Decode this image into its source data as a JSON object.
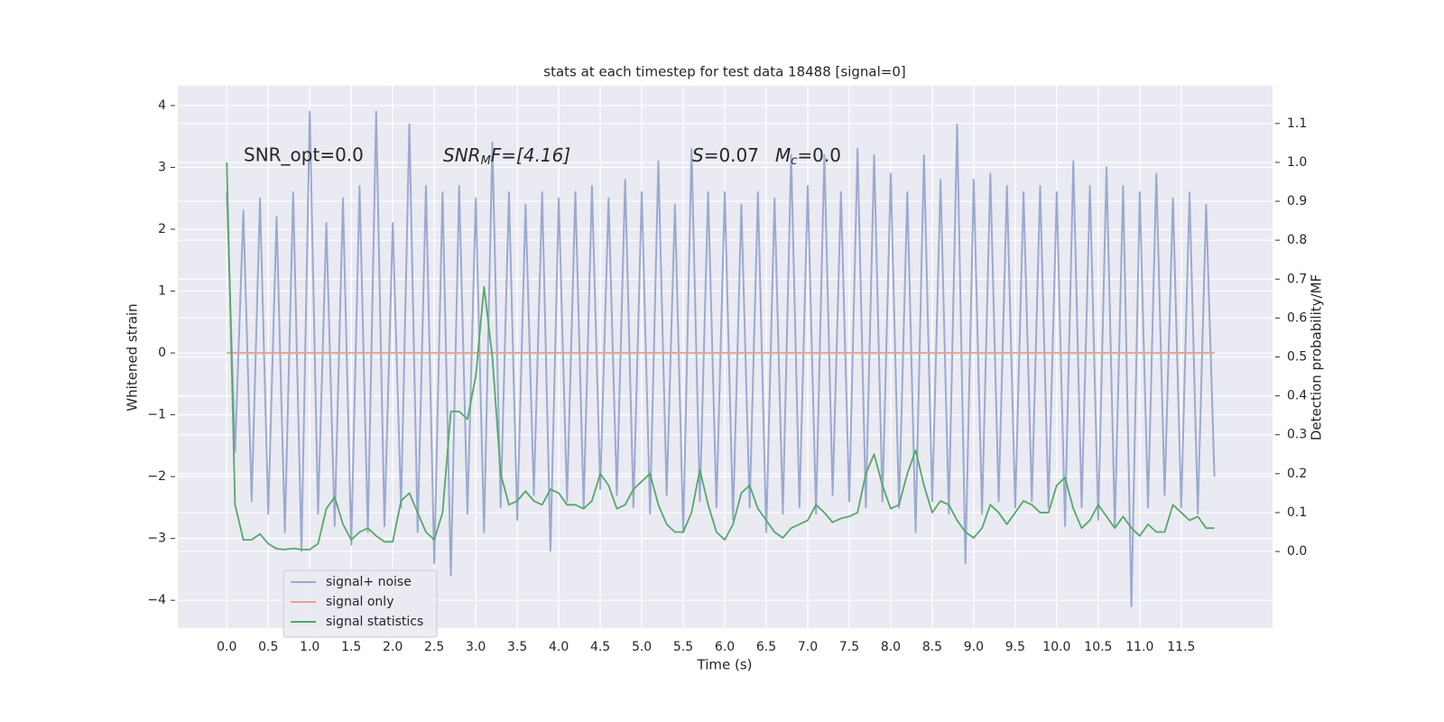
{
  "chart_data": {
    "type": "line",
    "title": "stats at each timestep for test data 18488 [signal=0]",
    "x_label": "Time (s)",
    "y_label": "Whitened strain",
    "y2_label": "Detection probability/MF",
    "annotations": [
      {
        "text": "SNR_opt=0.0"
      },
      {
        "base": "SNR",
        "sub": "M",
        "rest": "F=[4.16]"
      },
      {
        "base": "S",
        "rest": "=0.07"
      },
      {
        "base": "M",
        "sub": "c",
        "rest": "=0.0"
      }
    ],
    "x": [
      0.0,
      0.1,
      0.2,
      0.3,
      0.4,
      0.5,
      0.6,
      0.7,
      0.8,
      0.9,
      1.0,
      1.1,
      1.2,
      1.3,
      1.4,
      1.5,
      1.6,
      1.7,
      1.8,
      1.9,
      2.0,
      2.1,
      2.2,
      2.3,
      2.4,
      2.5,
      2.6,
      2.7,
      2.8,
      2.9,
      3.0,
      3.1,
      3.2,
      3.3,
      3.4,
      3.5,
      3.6,
      3.7,
      3.8,
      3.9,
      4.0,
      4.1,
      4.2,
      4.3,
      4.4,
      4.5,
      4.6,
      4.7,
      4.8,
      4.9,
      5.0,
      5.1,
      5.2,
      5.3,
      5.4,
      5.5,
      5.6,
      5.7,
      5.8,
      5.9,
      6.0,
      6.1,
      6.2,
      6.3,
      6.4,
      6.5,
      6.6,
      6.7,
      6.8,
      6.9,
      7.0,
      7.1,
      7.2,
      7.3,
      7.4,
      7.5,
      7.6,
      7.7,
      7.8,
      7.9,
      8.0,
      8.1,
      8.2,
      8.3,
      8.4,
      8.5,
      8.6,
      8.7,
      8.8,
      8.9,
      9.0,
      9.1,
      9.2,
      9.3,
      9.4,
      9.5,
      9.6,
      9.7,
      9.8,
      9.9,
      10.0,
      10.1,
      10.2,
      10.3,
      10.4,
      10.5,
      10.6,
      10.7,
      10.8,
      10.9,
      11.0,
      11.1,
      11.2,
      11.3,
      11.4,
      11.5,
      11.6,
      11.7,
      11.8,
      11.9
    ],
    "series": [
      {
        "name": "signal+ noise",
        "color": "#9aaad0",
        "values": [
          2.6,
          -1.6,
          2.3,
          -2.4,
          2.5,
          -2.6,
          2.2,
          -2.9,
          2.6,
          -3.2,
          3.9,
          -2.6,
          2.1,
          -2.8,
          2.5,
          -3.1,
          2.7,
          -2.9,
          3.9,
          -2.8,
          2.1,
          -2.5,
          3.7,
          -2.9,
          2.7,
          -3.4,
          2.6,
          -3.6,
          2.7,
          -2.6,
          2.5,
          -2.9,
          3.4,
          -2.5,
          2.6,
          -2.7,
          2.4,
          -2.3,
          2.6,
          -3.2,
          2.5,
          -2.4,
          2.6,
          -2.5,
          2.7,
          -2.2,
          2.5,
          -2.3,
          2.8,
          -2.5,
          2.6,
          -2.6,
          3.1,
          -2.3,
          2.4,
          -2.9,
          3.3,
          -2.4,
          2.6,
          -2.5,
          2.6,
          -2.7,
          2.4,
          -2.5,
          2.6,
          -2.9,
          2.5,
          -2.6,
          3.2,
          -2.5,
          2.7,
          -2.6,
          3.2,
          -2.3,
          2.6,
          -2.4,
          3.3,
          -2.5,
          3.2,
          -2.4,
          2.9,
          -2.5,
          2.6,
          -2.9,
          3.2,
          -2.4,
          2.8,
          -2.6,
          3.7,
          -3.4,
          2.8,
          -2.6,
          2.9,
          -2.4,
          2.7,
          -2.5,
          2.6,
          -2.4,
          2.7,
          -2.5,
          2.6,
          -2.8,
          3.1,
          -2.5,
          2.7,
          -2.7,
          3.0,
          -2.8,
          2.7,
          -4.1,
          2.6,
          -2.5,
          2.9,
          -2.3,
          2.5,
          -2.5,
          2.6,
          -2.6,
          2.4,
          -2.0
        ]
      },
      {
        "name": "signal only",
        "color": "#e4a68c",
        "x": [
          0.0,
          11.9
        ],
        "values": [
          0,
          0
        ]
      },
      {
        "name": "signal statistics",
        "color": "#55a868",
        "axis": "y2",
        "values": [
          1.0,
          0.12,
          0.03,
          0.03,
          0.045,
          0.02,
          0.007,
          0.005,
          0.008,
          0.005,
          0.005,
          0.02,
          0.11,
          0.14,
          0.07,
          0.03,
          0.05,
          0.06,
          0.04,
          0.025,
          0.025,
          0.13,
          0.15,
          0.1,
          0.05,
          0.03,
          0.1,
          0.36,
          0.36,
          0.34,
          0.45,
          0.68,
          0.5,
          0.2,
          0.12,
          0.13,
          0.155,
          0.13,
          0.12,
          0.16,
          0.15,
          0.12,
          0.12,
          0.11,
          0.13,
          0.2,
          0.17,
          0.11,
          0.12,
          0.16,
          0.18,
          0.2,
          0.12,
          0.07,
          0.05,
          0.05,
          0.1,
          0.21,
          0.12,
          0.05,
          0.03,
          0.07,
          0.15,
          0.17,
          0.11,
          0.08,
          0.05,
          0.035,
          0.06,
          0.07,
          0.08,
          0.12,
          0.1,
          0.075,
          0.085,
          0.09,
          0.1,
          0.2,
          0.25,
          0.17,
          0.11,
          0.12,
          0.2,
          0.26,
          0.17,
          0.1,
          0.13,
          0.12,
          0.08,
          0.05,
          0.035,
          0.06,
          0.12,
          0.1,
          0.07,
          0.1,
          0.13,
          0.12,
          0.1,
          0.1,
          0.17,
          0.19,
          0.11,
          0.06,
          0.08,
          0.12,
          0.09,
          0.06,
          0.09,
          0.06,
          0.04,
          0.07,
          0.05,
          0.05,
          0.12,
          0.1,
          0.08,
          0.09,
          0.06,
          0.06
        ]
      }
    ],
    "xlim": [
      -0.59,
      12.6
    ],
    "ylim": [
      -4.45,
      4.32
    ],
    "y2lim": [
      -0.197,
      1.197
    ],
    "xticks": [
      {
        "value": 0,
        "label": "0.0"
      },
      0.5,
      {
        "value": 1,
        "label": "1.0"
      },
      1.5,
      {
        "value": 2,
        "label": "2.0"
      },
      2.5,
      {
        "value": 3,
        "label": "3.0"
      },
      3.5,
      {
        "value": 4,
        "label": "4.0"
      },
      4.5,
      {
        "value": 5,
        "label": "5.0"
      },
      5.5,
      {
        "value": 6,
        "label": "6.0"
      },
      6.5,
      {
        "value": 7,
        "label": "7.0"
      },
      7.5,
      {
        "value": 8,
        "label": "8.0"
      },
      8.5,
      {
        "value": 9,
        "label": "9.0"
      },
      9.5,
      {
        "value": 10,
        "label": "10.0"
      },
      10.5,
      {
        "value": 11,
        "label": "11.0"
      },
      11.5
    ],
    "yticks": [
      {
        "value": -4,
        "label": "−4"
      },
      {
        "value": -3,
        "label": "−3"
      },
      {
        "value": -2,
        "label": "−2"
      },
      {
        "value": -1,
        "label": "−1"
      },
      0,
      1,
      2,
      3,
      4
    ],
    "y2ticks": [
      {
        "value": 0,
        "label": "0.0"
      },
      0.1,
      0.2,
      0.3,
      0.4,
      0.5,
      0.6,
      0.7,
      0.8,
      0.9,
      {
        "value": 1,
        "label": "1.0"
      },
      1.1
    ],
    "grid": true,
    "legend": "lower left"
  }
}
